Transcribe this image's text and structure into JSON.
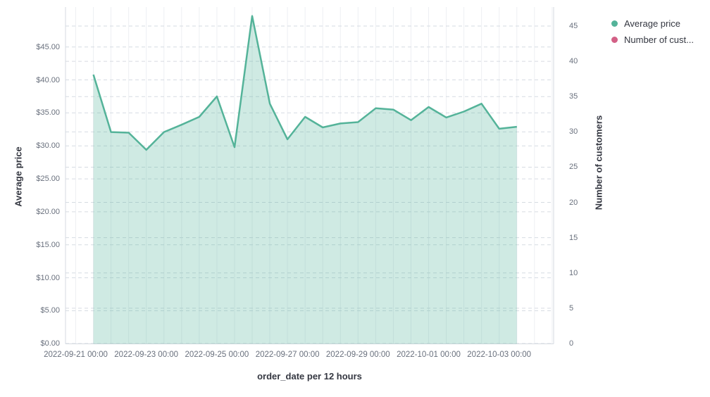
{
  "chart_data": {
    "type": "area",
    "title": "",
    "legend": {
      "position": "top-right",
      "items": [
        {
          "label": "Average price",
          "color": "#54B399"
        },
        {
          "label": "Number of cust...",
          "color": "#D36086"
        }
      ]
    },
    "x_axis": {
      "title": "order_date per 12 hours",
      "tick_labels": [
        "2022-09-21 00:00",
        "2022-09-23 00:00",
        "2022-09-25 00:00",
        "2022-09-27 00:00",
        "2022-09-29 00:00",
        "2022-10-01 00:00",
        "2022-10-03 00:00"
      ]
    },
    "y_axis_left": {
      "title": "Average price",
      "range": [
        0,
        45
      ],
      "tick_step": 5,
      "tick_labels": [
        "$0.00",
        "$5.00",
        "$10.00",
        "$15.00",
        "$20.00",
        "$25.00",
        "$30.00",
        "$35.00",
        "$40.00",
        "$45.00"
      ],
      "grid": "dashed"
    },
    "y_axis_right": {
      "title": "Number of customers",
      "range": [
        0,
        45
      ],
      "tick_step": 5,
      "tick_labels": [
        "0",
        "5",
        "10",
        "15",
        "20",
        "25",
        "30",
        "35",
        "40",
        "45"
      ],
      "grid": "dashed"
    },
    "series": [
      {
        "name": "Average price",
        "type": "area",
        "axis": "left",
        "color": "#54B399",
        "fill_opacity": 0.28,
        "x": [
          "2022-09-21 12:00",
          "2022-09-22 00:00",
          "2022-09-22 12:00",
          "2022-09-23 00:00",
          "2022-09-23 12:00",
          "2022-09-24 00:00",
          "2022-09-24 12:00",
          "2022-09-25 00:00",
          "2022-09-25 12:00",
          "2022-09-26 00:00",
          "2022-09-26 12:00",
          "2022-09-27 00:00",
          "2022-09-27 12:00",
          "2022-09-28 00:00",
          "2022-09-28 12:00",
          "2022-09-29 00:00",
          "2022-09-29 12:00",
          "2022-09-30 00:00",
          "2022-09-30 12:00",
          "2022-10-01 00:00",
          "2022-10-01 12:00",
          "2022-10-02 00:00",
          "2022-10-02 12:00",
          "2022-10-03 00:00",
          "2022-10-03 12:00"
        ],
        "values": [
          40.8,
          32.1,
          32.0,
          29.4,
          32.1,
          33.2,
          34.4,
          37.5,
          29.8,
          49.7,
          36.4,
          31.0,
          34.4,
          32.8,
          33.4,
          33.6,
          35.7,
          35.5,
          33.9,
          35.9,
          34.3,
          35.2,
          36.4,
          32.6,
          32.9
        ]
      },
      {
        "name": "Number of customers",
        "type": "line",
        "axis": "right",
        "color": "#D36086",
        "values": []
      }
    ]
  }
}
